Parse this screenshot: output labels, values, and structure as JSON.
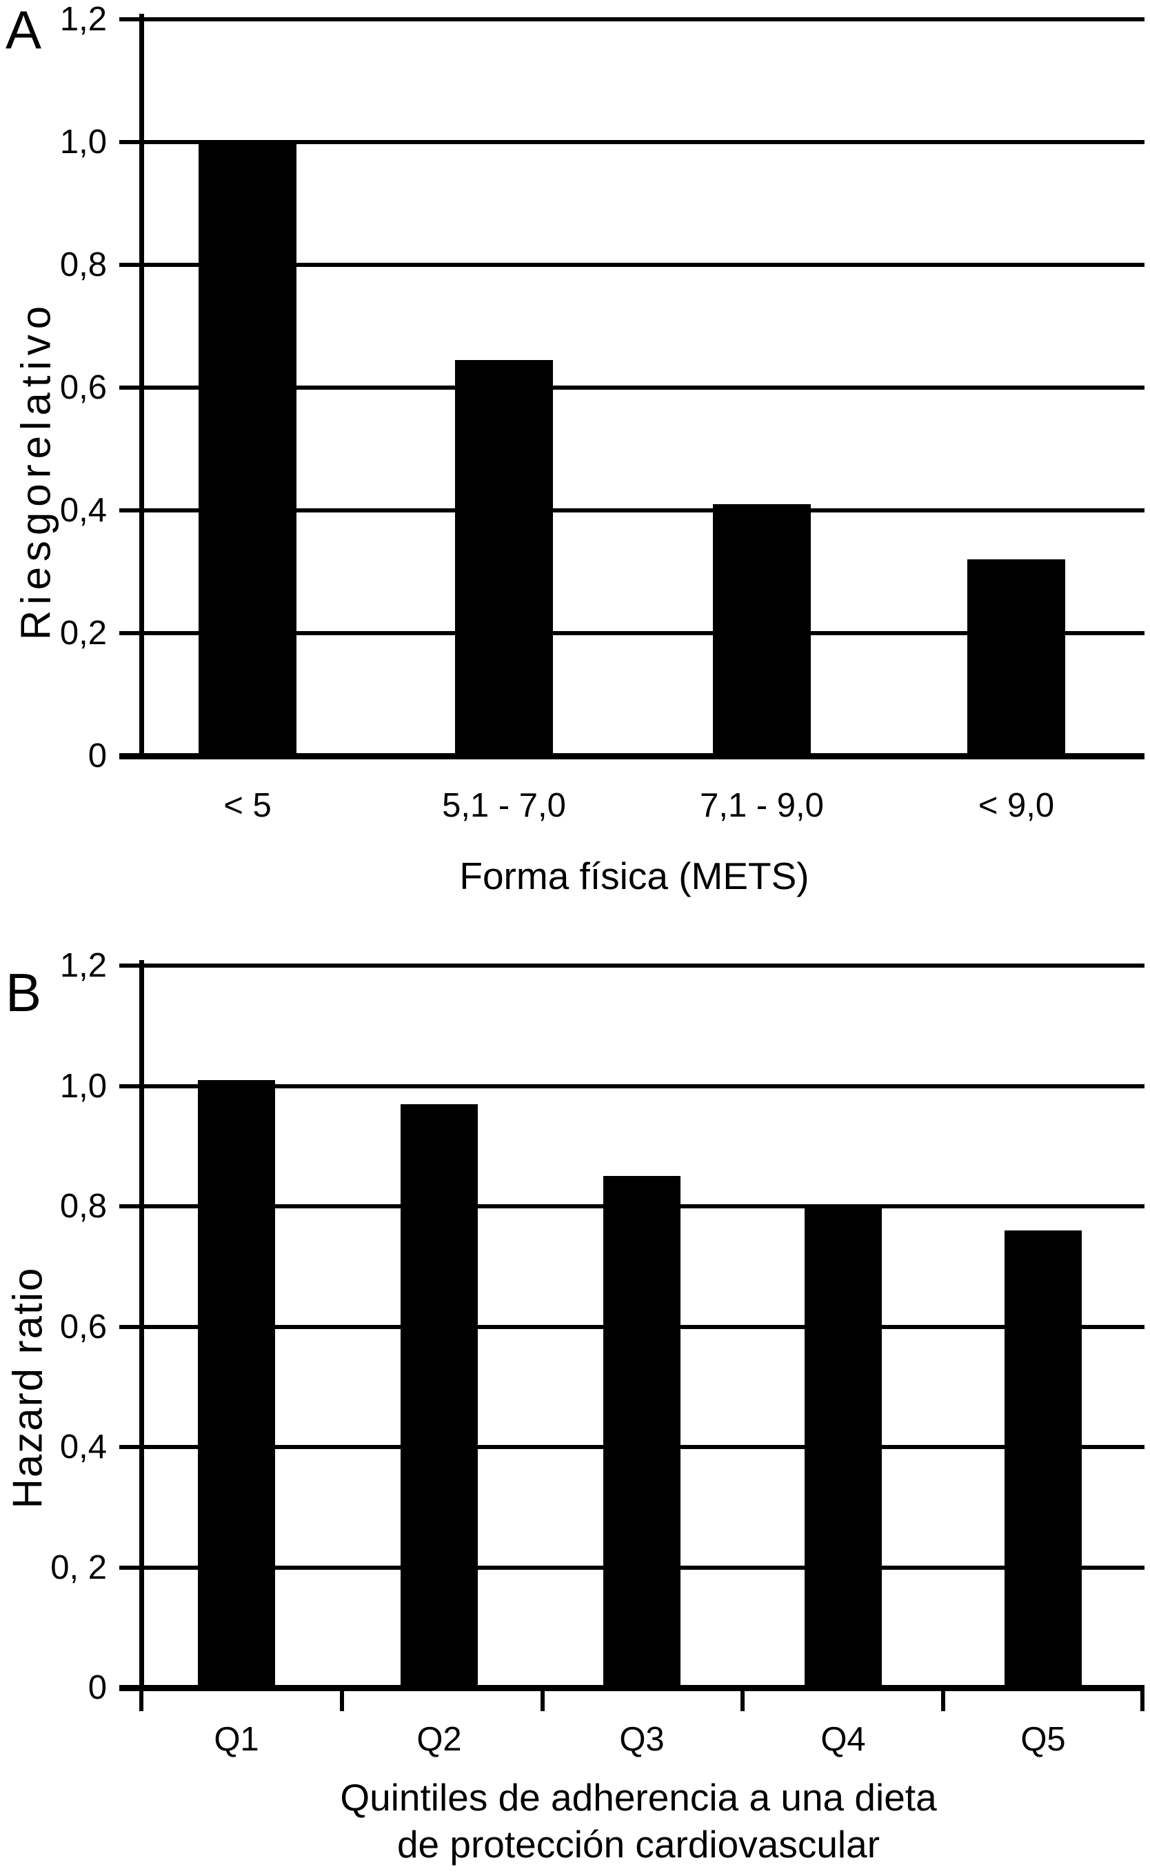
{
  "figure": {
    "background_color": "#ffffff",
    "ink_color": "#000000",
    "panels": [
      {
        "panel_label": "A"
      },
      {
        "panel_label": "B"
      }
    ]
  },
  "chart_data": [
    {
      "type": "bar",
      "panel": "A",
      "title": "",
      "ylabel": "Riesgorelativo",
      "xlabel": "Forma física (METS)",
      "categories": [
        "< 5",
        "5,1 - 7,0",
        "7,1 - 9,0",
        "< 9,0"
      ],
      "values": [
        1.0,
        0.645,
        0.41,
        0.32
      ],
      "ylim": [
        0,
        1.2
      ],
      "ytick_values": [
        0,
        0.2,
        0.4,
        0.6,
        0.8,
        1.0,
        1.2
      ],
      "ytick_labels": [
        "0",
        "0,2",
        "0,4",
        "0,6",
        "0,8",
        "1,0",
        "1,2"
      ],
      "bar_color": "#000000",
      "grid": "horizontal gridline at every y tick, full plot width",
      "legend": "none"
    },
    {
      "type": "bar",
      "panel": "B",
      "title": "",
      "ylabel": "Hazard ratio",
      "xlabel_line1": "Quintiles de adherencia a una dieta",
      "xlabel_line2": "de protección cardiovascular",
      "categories": [
        "Q1",
        "Q2",
        "Q3",
        "Q4",
        "Q5"
      ],
      "values": [
        1.01,
        0.97,
        0.85,
        0.8,
        0.76
      ],
      "ylim": [
        0,
        1.2
      ],
      "ytick_values": [
        0,
        0.2,
        0.4,
        0.6,
        0.8,
        1.0,
        1.2
      ],
      "ytick_labels": [
        "0",
        "0, 2",
        "0,4",
        "0,6",
        "0,8",
        "1,0",
        "1,2"
      ],
      "bar_color": "#000000",
      "grid": "horizontal gridline at every y tick, full plot width; short ticks below baseline at category boundaries",
      "legend": "none"
    }
  ]
}
